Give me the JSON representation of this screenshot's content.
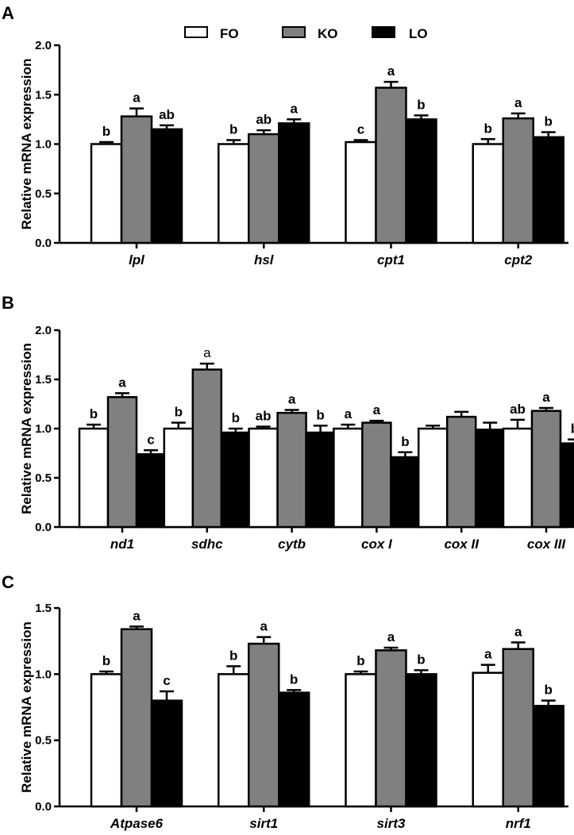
{
  "legend": [
    {
      "name": "FO",
      "color": "#ffffff"
    },
    {
      "name": "KO",
      "color": "#808080"
    },
    {
      "name": "LO",
      "color": "#000000"
    }
  ],
  "chart_data": [
    {
      "panel": "A",
      "type": "bar",
      "ylabel": "Relative mRNA expression",
      "ylim": [
        0,
        2.0
      ],
      "yticks": [
        "0.0",
        "0.5",
        "1.0",
        "1.5",
        "2.0"
      ],
      "categories": [
        "lpl",
        "hsl",
        "cpt1",
        "cpt2"
      ],
      "series": [
        {
          "name": "FO",
          "values": [
            1.0,
            1.0,
            1.02,
            1.0
          ],
          "errors": [
            0.02,
            0.04,
            0.02,
            0.05
          ],
          "labels": [
            "b",
            "b",
            "c",
            "b"
          ]
        },
        {
          "name": "KO",
          "values": [
            1.28,
            1.1,
            1.57,
            1.26
          ],
          "errors": [
            0.08,
            0.04,
            0.06,
            0.05
          ],
          "labels": [
            "a",
            "ab",
            "a",
            "a"
          ]
        },
        {
          "name": "LO",
          "values": [
            1.15,
            1.21,
            1.25,
            1.07
          ],
          "errors": [
            0.04,
            0.04,
            0.04,
            0.05
          ],
          "labels": [
            "ab",
            "a",
            "b",
            "b"
          ]
        }
      ]
    },
    {
      "panel": "B",
      "type": "bar",
      "ylabel": "Relative mRNA expression",
      "ylim": [
        0,
        2.0
      ],
      "yticks": [
        "0.0",
        "0.5",
        "1.0",
        "1.5",
        "2.0"
      ],
      "categories": [
        "nd1",
        "sdhc",
        "cytb",
        "cox I",
        "cox II",
        "cox III"
      ],
      "series": [
        {
          "name": "FO",
          "values": [
            1.0,
            1.0,
            1.0,
            1.0,
            1.0,
            1.0
          ],
          "errors": [
            0.04,
            0.06,
            0.02,
            0.04,
            0.03,
            0.09
          ],
          "labels": [
            "b",
            "b",
            "ab",
            "a",
            "",
            "ab"
          ]
        },
        {
          "name": "KO",
          "values": [
            1.32,
            1.6,
            1.16,
            1.06,
            1.12,
            1.18
          ],
          "errors": [
            0.04,
            0.06,
            0.03,
            0.02,
            0.05,
            0.03
          ],
          "labels": [
            "a",
            "a",
            "a",
            "a",
            "",
            "a"
          ]
        },
        {
          "name": "LO",
          "values": [
            0.74,
            0.96,
            0.96,
            0.71,
            0.99,
            0.85
          ],
          "errors": [
            0.04,
            0.04,
            0.07,
            0.05,
            0.07,
            0.04
          ],
          "labels": [
            "c",
            "b",
            "b",
            "b",
            "",
            "b"
          ]
        }
      ]
    },
    {
      "panel": "C",
      "type": "bar",
      "ylabel": "Relative mRNA expression",
      "ylim": [
        0,
        1.5
      ],
      "yticks": [
        "0.0",
        "0.5",
        "1.0",
        "1.5"
      ],
      "categories": [
        "Atpase6",
        "sirt1",
        "sirt3",
        "nrf1"
      ],
      "series": [
        {
          "name": "FO",
          "values": [
            1.0,
            1.0,
            1.0,
            1.01
          ],
          "errors": [
            0.02,
            0.06,
            0.02,
            0.06
          ],
          "labels": [
            "b",
            "b",
            "b",
            "a"
          ]
        },
        {
          "name": "KO",
          "values": [
            1.34,
            1.23,
            1.18,
            1.19
          ],
          "errors": [
            0.02,
            0.05,
            0.02,
            0.05
          ],
          "labels": [
            "a",
            "a",
            "a",
            "a"
          ]
        },
        {
          "name": "LO",
          "values": [
            0.8,
            0.86,
            1.0,
            0.76
          ],
          "errors": [
            0.07,
            0.02,
            0.03,
            0.04
          ],
          "labels": [
            "c",
            "b",
            "b",
            "b"
          ]
        }
      ]
    }
  ]
}
